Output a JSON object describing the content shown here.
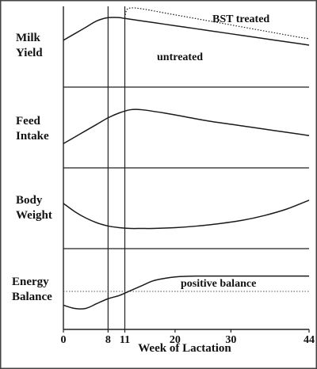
{
  "chart_data": {
    "type": "line",
    "x_axis": {
      "label": "Week of Lactation",
      "ticks": [
        0,
        8,
        11,
        20,
        30,
        44
      ],
      "range": [
        0,
        44
      ],
      "reference_lines": [
        8,
        11
      ]
    },
    "panels": [
      {
        "id": "milk",
        "label_lines": [
          "Milk",
          "Yield"
        ],
        "series": [
          {
            "name": "untreated",
            "style": "solid",
            "x": [
              0,
              2,
              4,
              6,
              8,
              10,
              11,
              14,
              18,
              22,
              26,
              30,
              34,
              38,
              42,
              44
            ],
            "y": [
              0.58,
              0.66,
              0.74,
              0.82,
              0.86,
              0.86,
              0.85,
              0.82,
              0.78,
              0.74,
              0.7,
              0.66,
              0.62,
              0.58,
              0.54,
              0.52
            ]
          },
          {
            "name": "BST treated",
            "style": "dotted",
            "x": [
              11,
              11.3,
              12,
              14,
              18,
              22,
              26,
              30,
              34,
              38,
              42,
              44
            ],
            "y": [
              0.86,
              0.95,
              0.98,
              0.97,
              0.92,
              0.87,
              0.82,
              0.77,
              0.72,
              0.67,
              0.62,
              0.6
            ]
          }
        ],
        "annotations": [
          "BST treated",
          "untreated"
        ]
      },
      {
        "id": "feed",
        "label_lines": [
          "Feed",
          "Intake"
        ],
        "series": [
          {
            "name": "",
            "style": "solid",
            "x": [
              0,
              2,
              4,
              6,
              8,
              10,
              12,
              14,
              18,
              22,
              26,
              30,
              34,
              38,
              42,
              44
            ],
            "y": [
              0.3,
              0.38,
              0.46,
              0.54,
              0.62,
              0.68,
              0.72,
              0.72,
              0.68,
              0.63,
              0.58,
              0.54,
              0.5,
              0.46,
              0.42,
              0.4
            ]
          }
        ]
      },
      {
        "id": "weight",
        "label_lines": [
          "Body",
          "Weight"
        ],
        "series": [
          {
            "name": "",
            "style": "solid",
            "x": [
              0,
              2,
              4,
              6,
              8,
              10,
              12,
              14,
              16,
              20,
              24,
              28,
              32,
              36,
              40,
              44
            ],
            "y": [
              0.56,
              0.46,
              0.38,
              0.32,
              0.28,
              0.26,
              0.25,
              0.25,
              0.25,
              0.26,
              0.28,
              0.31,
              0.35,
              0.41,
              0.49,
              0.6
            ]
          }
        ]
      },
      {
        "id": "energy",
        "label_lines": [
          "Energy",
          "Balance"
        ],
        "series": [
          {
            "name": "",
            "style": "solid",
            "x": [
              0,
              2,
              4,
              6,
              8,
              10,
              12,
              14,
              16,
              18,
              20,
              24,
              30,
              36,
              44
            ],
            "y": [
              0.3,
              0.26,
              0.26,
              0.32,
              0.38,
              0.42,
              0.48,
              0.54,
              0.6,
              0.63,
              0.65,
              0.66,
              0.66,
              0.66,
              0.66
            ]
          }
        ],
        "baseline_y": 0.47,
        "annotations": [
          "positive balance"
        ]
      }
    ]
  }
}
